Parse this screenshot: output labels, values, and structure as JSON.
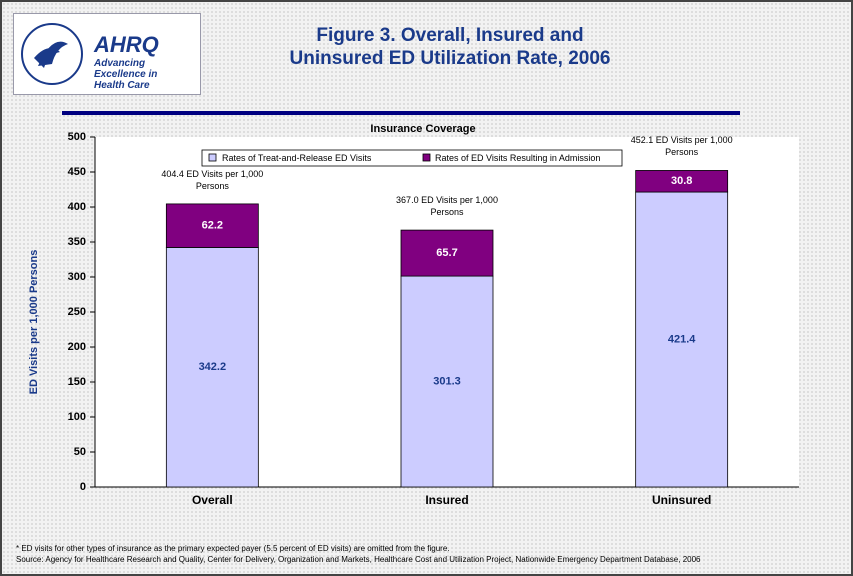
{
  "logo": {
    "name": "AHRQ",
    "tagline": "Advancing Excellence in Health Care"
  },
  "chart_data": {
    "type": "bar",
    "stacked": true,
    "title": "Figure 3. Overall, Insured and Uninsured ED Utilization Rate, 2006",
    "subtitle": "Insurance Coverage",
    "y_label": "ED Visits per 1,000 Persons",
    "categories": [
      "Overall",
      "Insured",
      "Uninsured"
    ],
    "series": [
      {
        "name": "Rates of Treat-and-Release ED Visits",
        "color": "#ccccff",
        "values": [
          342.2,
          301.3,
          421.4
        ]
      },
      {
        "name": "Rates of ED Visits Resulting in Admission",
        "color": "#800080",
        "values": [
          62.2,
          65.7,
          30.8
        ]
      }
    ],
    "annotations": [
      "404.4 ED Visits per 1,000 Persons",
      "367.0 ED Visits per 1,000 Persons",
      "452.1 ED Visits per 1,000 Persons"
    ],
    "ylim": [
      0,
      500
    ],
    "yticks": [
      0,
      50,
      100,
      150,
      200,
      250,
      300,
      350,
      400,
      450,
      500
    ],
    "legend": "top",
    "footnotes": [
      "* ED visits for other types of insurance as the primary expected payer (5.5 percent of ED visits) are omitted from the figure.",
      "Source: Agency for Healthcare Research and Quality, Center for Delivery, Organization and Markets, Healthcare Cost and Utilization Project, Nationwide Emergency Department Database, 2006"
    ]
  }
}
